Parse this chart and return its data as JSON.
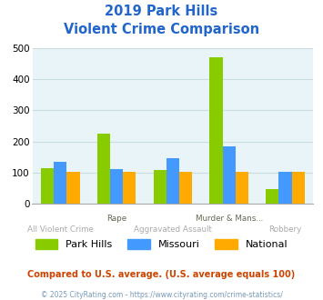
{
  "title_line1": "2019 Park Hills",
  "title_line2": "Violent Crime Comparison",
  "categories": [
    "All Violent Crime",
    "Rape",
    "Aggravated Assault",
    "Murder & Mans...",
    "Robbery"
  ],
  "x_labels_row1": [
    "",
    "Rape",
    "",
    "Murder & Mans...",
    ""
  ],
  "x_labels_row2": [
    "All Violent Crime",
    "",
    "Aggravated Assault",
    "",
    "Robbery"
  ],
  "park_hills": [
    115,
    225,
    110,
    470,
    47
  ],
  "missouri": [
    135,
    113,
    148,
    185,
    103
  ],
  "national": [
    103,
    104,
    104,
    103,
    103
  ],
  "bar_colors": {
    "park_hills": "#88cc00",
    "missouri": "#4499ff",
    "national": "#ffaa00"
  },
  "ylim": [
    0,
    500
  ],
  "yticks": [
    0,
    100,
    200,
    300,
    400,
    500
  ],
  "legend_labels": [
    "Park Hills",
    "Missouri",
    "National"
  ],
  "footnote1": "Compared to U.S. average. (U.S. average equals 100)",
  "footnote2": "© 2025 CityRating.com - https://www.cityrating.com/crime-statistics/",
  "bg_color": "#e8f4f8",
  "title_color": "#2266cc",
  "footnote1_color": "#cc4400",
  "footnote2_color": "#7799bb",
  "grid_color": "#c8dde0"
}
